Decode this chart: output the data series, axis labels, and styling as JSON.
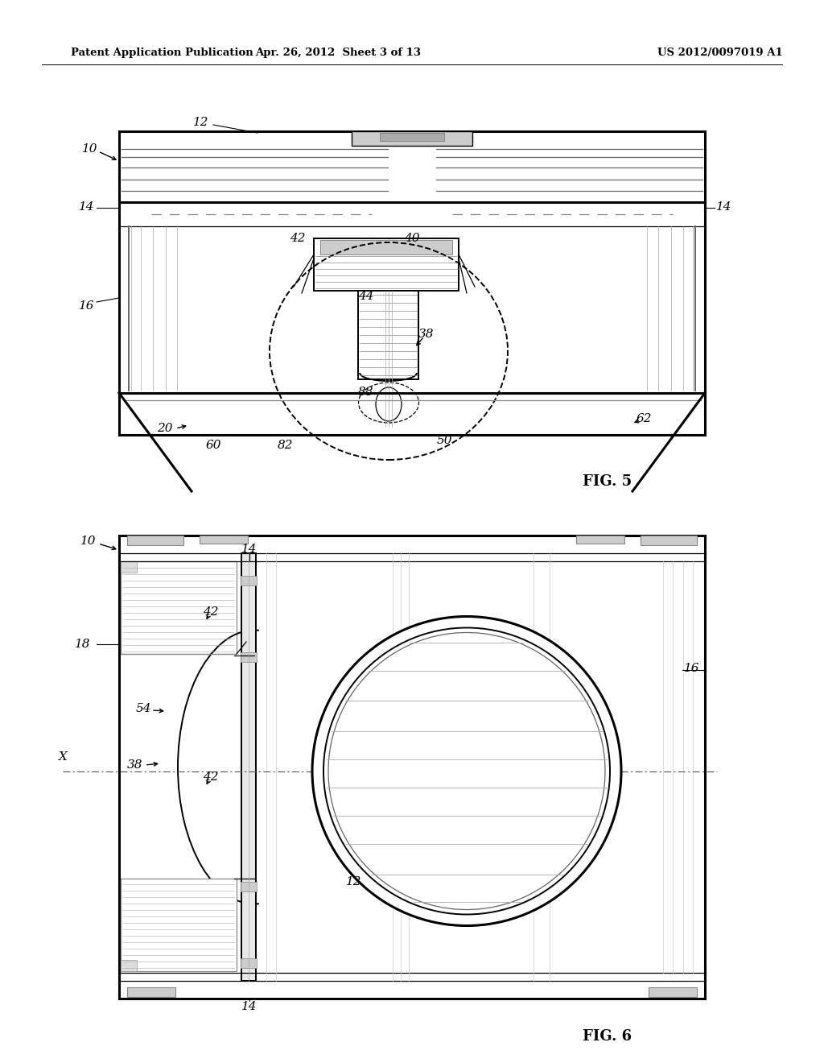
{
  "header_left": "Patent Application Publication",
  "header_middle": "Apr. 26, 2012  Sheet 3 of 13",
  "header_right": "US 2012/0097019 A1",
  "fig5_label": "FIG. 5",
  "fig6_label": "FIG. 6",
  "bg_color": "#ffffff",
  "line_color": "#000000"
}
